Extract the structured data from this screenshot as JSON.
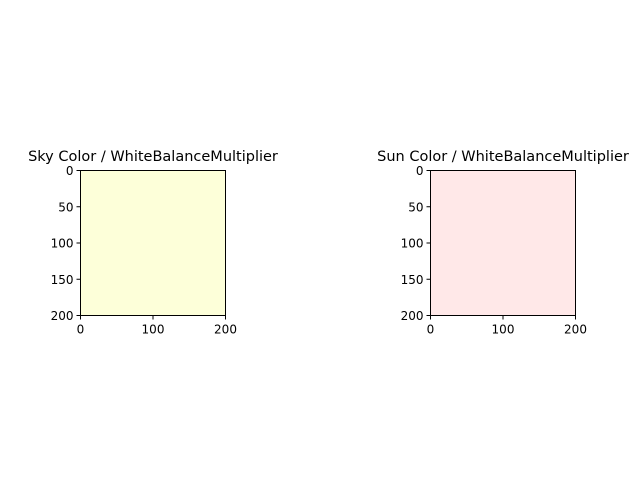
{
  "chart_data": [
    {
      "type": "heatmap",
      "title": "Sky Color / WhiteBalanceMultiplier",
      "xlabel": "",
      "ylabel": "",
      "xlim": [
        0,
        200
      ],
      "ylim": [
        200,
        0
      ],
      "xticks": [
        0,
        100,
        200
      ],
      "yticks": [
        0,
        50,
        100,
        150,
        200
      ],
      "fill_color": "#fdffd9",
      "grid": false
    },
    {
      "type": "heatmap",
      "title": "Sun Color / WhiteBalanceMultiplier",
      "xlabel": "",
      "ylabel": "",
      "xlim": [
        0,
        200
      ],
      "ylim": [
        200,
        0
      ],
      "xticks": [
        0,
        100,
        200
      ],
      "yticks": [
        0,
        50,
        100,
        150,
        200
      ],
      "fill_color": "#ffe8e8",
      "grid": false
    }
  ]
}
